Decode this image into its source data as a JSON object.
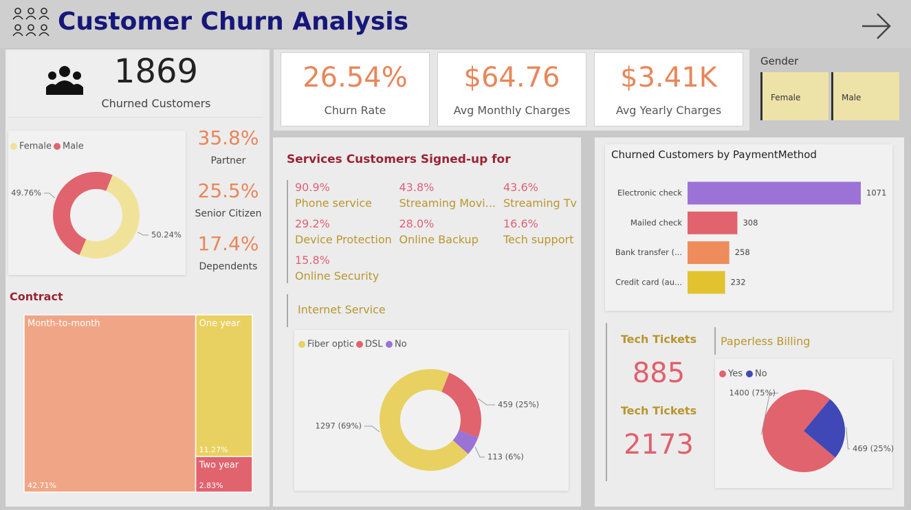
{
  "header": {
    "title": "Customer Churn Analysis"
  },
  "churned_card": {
    "value": 1869,
    "label": "Churned Customers"
  },
  "demographics": [
    {
      "value": "35.8%",
      "label": "Partner"
    },
    {
      "value": "25.5%",
      "label": "Senior Citizen"
    },
    {
      "value": "17.4%",
      "label": "Dependents"
    }
  ],
  "kpis": [
    {
      "value": "26.54%",
      "label": "Churn Rate"
    },
    {
      "value": "$64.76",
      "label": "Avg Monthly Charges"
    },
    {
      "value": "$3.41K",
      "label": "Avg Yearly Charges"
    }
  ],
  "gender_slicer": {
    "title": "Gender",
    "options": [
      "Female",
      "Male"
    ]
  },
  "services": {
    "title": "Services Customers Signed-up for",
    "items": [
      {
        "value": "90.9%",
        "label": "Phone service"
      },
      {
        "value": "43.8%",
        "label": "Streaming Movi..."
      },
      {
        "value": "43.6%",
        "label": "Streaming Tv"
      },
      {
        "value": "29.2%",
        "label": "Device Protection"
      },
      {
        "value": "28.0%",
        "label": "Online Backup"
      },
      {
        "value": "16.6%",
        "label": "Tech support"
      },
      {
        "value": "15.8%",
        "label": "Online Security"
      }
    ]
  },
  "tech_tickets": [
    {
      "title": "Tech Tickets",
      "value": 885
    },
    {
      "title": "Tech Tickets",
      "value": 2173
    }
  ],
  "chart_data": [
    {
      "type": "donut",
      "categories": [
        "Female",
        "Male"
      ],
      "values": [
        50.24,
        49.76
      ],
      "value_labels": [
        "50.24%",
        "49.76%"
      ],
      "colors": [
        "#f1e29a",
        "#e0636e"
      ]
    },
    {
      "type": "bar",
      "title": "Churned Customers by PaymentMethod",
      "categories": [
        "Electronic check",
        "Mailed check",
        "Bank transfer (...",
        "Credit card (au..."
      ],
      "values": [
        1071,
        308,
        258,
        232
      ],
      "colors": [
        "#9b72d6",
        "#e0636e",
        "#ef8c5c",
        "#e3c22f"
      ]
    },
    {
      "type": "donut",
      "title": "Internet Service",
      "categories": [
        "Fiber optic",
        "DSL",
        "No"
      ],
      "values": [
        1297,
        459,
        113
      ],
      "value_labels": [
        "1297 (69%)",
        "459 (25%)",
        "113 (6%)"
      ],
      "colors": [
        "#e8d160",
        "#e0636e",
        "#9b72d6"
      ]
    },
    {
      "type": "pie",
      "title": "Paperless Billing",
      "categories": [
        "Yes",
        "No"
      ],
      "values": [
        1400,
        469
      ],
      "value_labels": [
        "1400 (75%)",
        "469 (25%)"
      ],
      "colors": [
        "#e0636e",
        "#3f48b6"
      ]
    },
    {
      "type": "treemap",
      "title": "Contract",
      "categories": [
        "Month-to-month",
        "One year",
        "Two year"
      ],
      "values": [
        42.71,
        11.27,
        2.83
      ],
      "value_labels": [
        "42.71%",
        "11.27%",
        "2.83%"
      ],
      "colors": [
        "#f0a686",
        "#e8d160",
        "#e0636e"
      ]
    }
  ]
}
